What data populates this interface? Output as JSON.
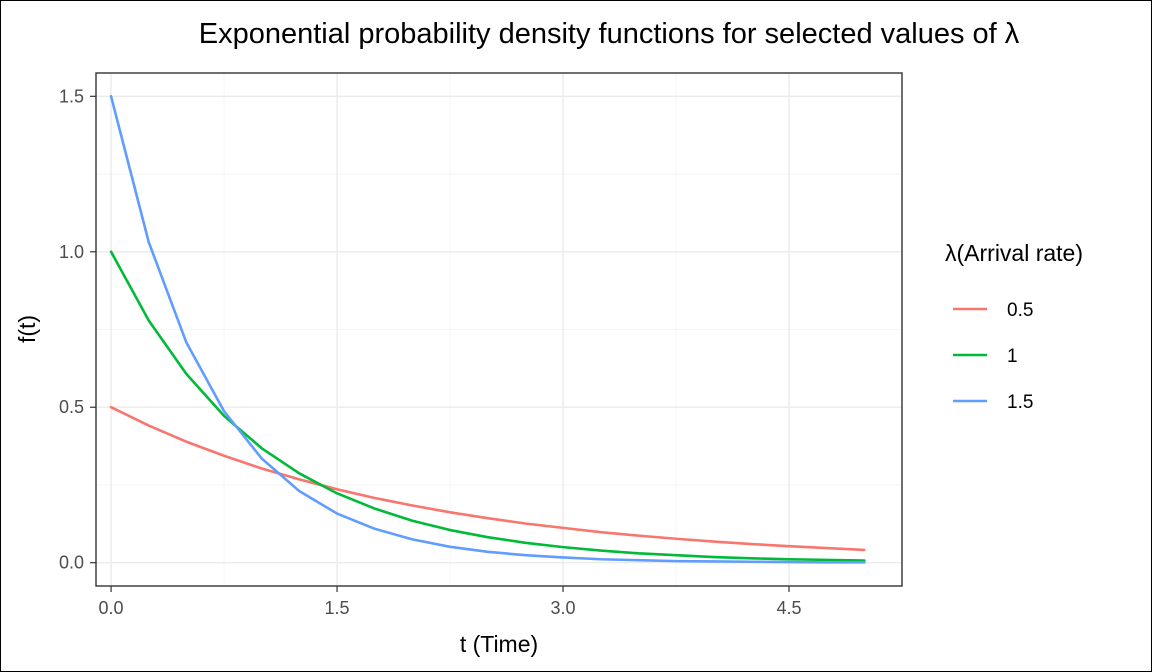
{
  "chart_data": {
    "type": "line",
    "title": "Exponential probability density functions for selected values of λ",
    "xlabel": "t (Time)",
    "ylabel": "f(t)",
    "xlim": [
      -0.1,
      5.25
    ],
    "ylim": [
      -0.075,
      1.575
    ],
    "x_ticks": [
      0,
      1.5,
      3,
      4.5
    ],
    "x_tick_labels": [
      "0.0",
      "1.5",
      "3.0",
      "4.5"
    ],
    "y_ticks": [
      0,
      0.5,
      1,
      1.5
    ],
    "y_tick_labels": [
      "0.0",
      "0.5",
      "1.0",
      "1.5"
    ],
    "grid": true,
    "legend": {
      "title": "λ(Arrival rate)",
      "position": "right"
    },
    "x": [
      0,
      0.25,
      0.5,
      0.75,
      1,
      1.25,
      1.5,
      1.75,
      2,
      2.25,
      2.5,
      2.75,
      3,
      3.25,
      3.5,
      3.75,
      4,
      4.25,
      4.5,
      4.75,
      5
    ],
    "series": [
      {
        "name": "0.5",
        "color": "#F8766D",
        "values": [
          0.5,
          0.441,
          0.389,
          0.344,
          0.303,
          0.268,
          0.236,
          0.208,
          0.184,
          0.162,
          0.143,
          0.126,
          0.112,
          0.098,
          0.087,
          0.077,
          0.068,
          0.06,
          0.053,
          0.047,
          0.041
        ]
      },
      {
        "name": "1",
        "color": "#00BA38",
        "values": [
          1.0,
          0.779,
          0.607,
          0.472,
          0.368,
          0.287,
          0.223,
          0.174,
          0.135,
          0.105,
          0.082,
          0.064,
          0.05,
          0.039,
          0.03,
          0.024,
          0.018,
          0.014,
          0.011,
          0.009,
          0.007
        ]
      },
      {
        "name": "1.5",
        "color": "#619CFF",
        "values": [
          1.5,
          1.031,
          0.708,
          0.487,
          0.335,
          0.23,
          0.158,
          0.109,
          0.075,
          0.051,
          0.035,
          0.024,
          0.017,
          0.011,
          0.008,
          0.005,
          0.004,
          0.003,
          0.002,
          0.001,
          0.001
        ]
      }
    ]
  }
}
